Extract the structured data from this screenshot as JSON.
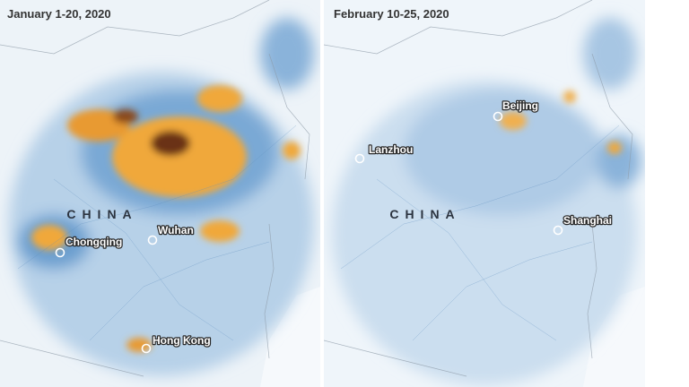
{
  "panels": [
    {
      "title": "January 1-20, 2020",
      "country_label": "CHINA",
      "cities": [
        {
          "label": "Chongqing"
        },
        {
          "label": "Wuhan"
        },
        {
          "label": "Hong Kong"
        }
      ]
    },
    {
      "title": "February 10-25, 2020",
      "country_label": "CHINA",
      "cities": [
        {
          "label": "Lanzhou"
        },
        {
          "label": "Beijing"
        },
        {
          "label": "Shanghai"
        }
      ]
    }
  ]
}
